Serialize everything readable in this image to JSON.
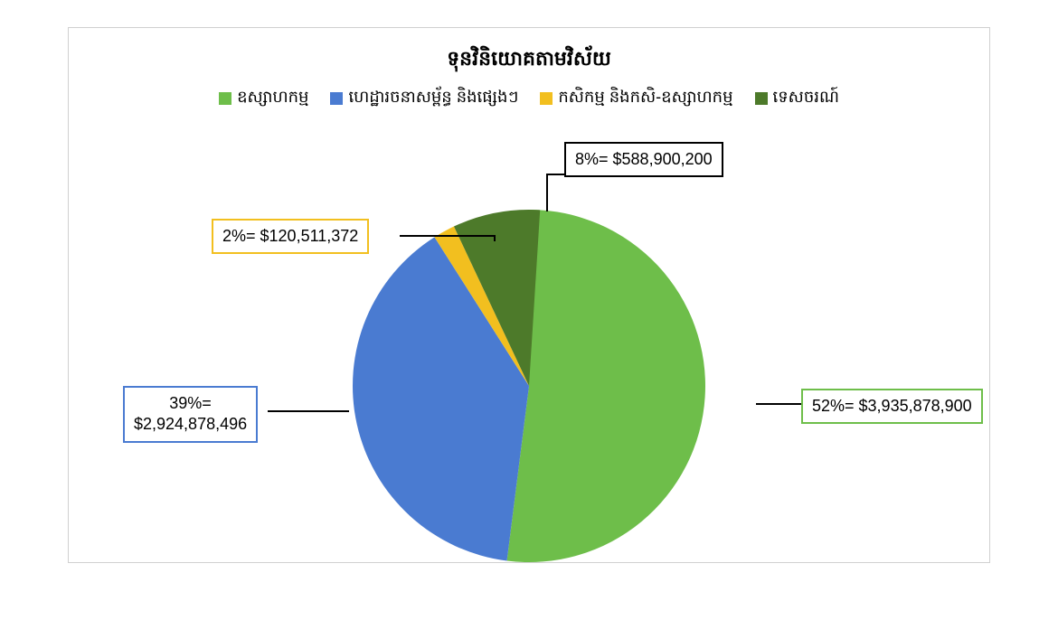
{
  "chart": {
    "type": "pie",
    "title": "ទុនវិនិយោគតាមវិស័យ",
    "title_fontsize": 22,
    "title_weight": "bold",
    "legend_fontsize": 18,
    "label_fontsize": 18,
    "background_color": "#ffffff",
    "border_color": "#d0d0d0",
    "leader_color": "#000000",
    "pie_radius": 195,
    "slices": [
      {
        "name": "industry",
        "legend_label": "ឧស្សាហកម្ម",
        "percent": 52,
        "value": "$3,935,878,900",
        "label_text": "52%= $3,935,878,900",
        "color": "#6ebe4a",
        "label_border_color": "#6ebe4a"
      },
      {
        "name": "infrastructure",
        "legend_label": "ហេដ្ឋារចនាសម្ព័ន្ធ និងផ្សេងៗ",
        "percent": 39,
        "value": "$2,924,878,496",
        "label_text": "39%=\n$2,924,878,496",
        "color": "#4a7bd1",
        "label_border_color": "#4a7bd1"
      },
      {
        "name": "agriculture",
        "legend_label": "កសិកម្ម និងកសិ-ឧស្សាហកម្ម",
        "percent": 2,
        "value": "$120,511,372",
        "label_text": "2%= $120,511,372",
        "color": "#f2bf1f",
        "label_border_color": "#f2bf1f"
      },
      {
        "name": "tourism",
        "legend_label": "ទេសចរណ៍",
        "percent": 8,
        "value": "$588,900,200",
        "label_text": "8%= $588,900,200",
        "color": "#4d7a2a",
        "label_border_color": "#000000"
      }
    ]
  }
}
